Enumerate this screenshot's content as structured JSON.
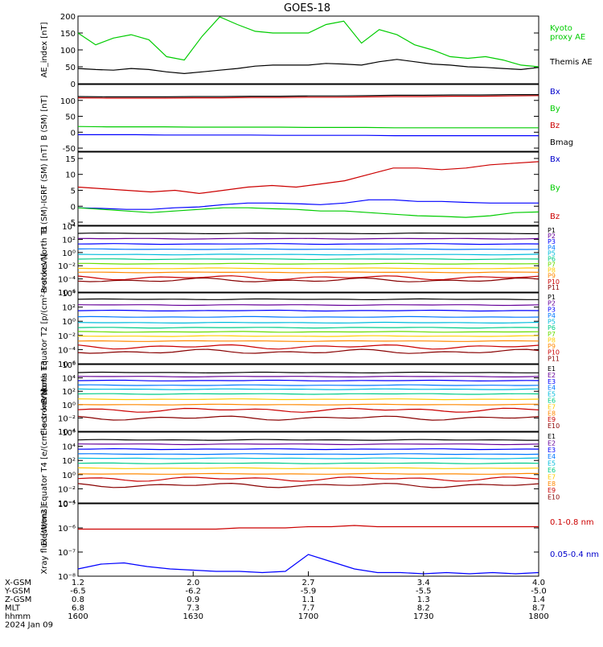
{
  "title": "GOES-18",
  "chart_data": [
    {
      "type": "line",
      "panel": "ae",
      "ylabel": "AE_index [nT]",
      "yticks": [
        "0",
        "50",
        "100",
        "150",
        "200"
      ],
      "ylim": [
        0,
        200
      ],
      "series": [
        {
          "name": "Kyoto proxy AE",
          "color": "#00cc00",
          "values": [
            150,
            115,
            135,
            145,
            130,
            80,
            70,
            140,
            205,
            175,
            155,
            150,
            150,
            150,
            175,
            185,
            120,
            160,
            145,
            115,
            100,
            80,
            75,
            80,
            70,
            55,
            50
          ]
        },
        {
          "name": "Themis AE",
          "color": "#000000",
          "values": [
            45,
            42,
            40,
            45,
            42,
            35,
            30,
            35,
            40,
            45,
            52,
            55,
            55,
            55,
            60,
            58,
            55,
            65,
            72,
            65,
            58,
            55,
            50,
            48,
            45,
            42,
            48
          ]
        }
      ],
      "legend": [
        {
          "text": "Kyoto",
          "color": "#00cc00"
        },
        {
          "text": "proxy AE",
          "color": "#00cc00"
        },
        {
          "text": "Themis AE",
          "color": "#000000"
        }
      ]
    },
    {
      "type": "line",
      "panel": "bsm",
      "ylabel": "B (SM) [nT]",
      "yticks": [
        "-50",
        "0",
        "50",
        "100"
      ],
      "ylim": [
        -60,
        150
      ],
      "series": [
        {
          "name": "Bx",
          "color": "#0000ff",
          "values": [
            -8,
            -8,
            -8,
            -9,
            -9,
            -9,
            -9,
            -10,
            -10,
            -10,
            -10,
            -11,
            -11,
            -11,
            -11,
            -11,
            -11
          ]
        },
        {
          "name": "By",
          "color": "#00cc00",
          "values": [
            18,
            17,
            17,
            17,
            16,
            16,
            16,
            16,
            15,
            15,
            15,
            14,
            14,
            14,
            14,
            14,
            14
          ]
        },
        {
          "name": "Bz",
          "color": "#cc0000",
          "values": [
            108,
            107,
            107,
            107,
            108,
            108,
            109,
            109,
            110,
            110,
            111,
            112,
            112,
            113,
            113,
            114,
            115
          ]
        },
        {
          "name": "Bmag",
          "color": "#000000",
          "values": [
            112,
            111,
            111,
            111,
            112,
            112,
            113,
            113,
            114,
            114,
            115,
            116,
            116,
            117,
            117,
            118,
            118
          ]
        }
      ],
      "legend": [
        {
          "text": "Bx",
          "color": "#0000cc"
        },
        {
          "text": "By",
          "color": "#00cc00"
        },
        {
          "text": "Bz",
          "color": "#cc0000"
        },
        {
          "text": "Bmag",
          "color": "#000000"
        }
      ]
    },
    {
      "type": "line",
      "panel": "bsm-igrf",
      "ylabel": "B (SM)-IGRF (SM) [nT]",
      "yticks": [
        "-5",
        "0",
        "5",
        "10",
        "15"
      ],
      "ylim": [
        -6,
        17
      ],
      "series": [
        {
          "name": "Bx",
          "color": "#0000ff",
          "values": [
            -0.5,
            -0.7,
            -1,
            -1,
            -0.5,
            -0.2,
            0.5,
            1,
            1,
            0.8,
            0.5,
            1,
            2,
            2,
            1.5,
            1.5,
            1.2,
            1,
            1,
            1
          ]
        },
        {
          "name": "By",
          "color": "#00cc00",
          "values": [
            -0.5,
            -1,
            -1.5,
            -2,
            -1.5,
            -1,
            -0.5,
            -0.5,
            -0.8,
            -1,
            -1.5,
            -1.5,
            -2,
            -2.5,
            -3,
            -3.2,
            -3.5,
            -3,
            -2,
            -1.8
          ]
        },
        {
          "name": "Bz",
          "color": "#cc0000",
          "values": [
            6,
            5.5,
            5,
            4.5,
            5,
            4,
            5,
            6,
            6.5,
            6,
            7,
            8,
            10,
            12,
            12,
            11.5,
            12,
            13,
            13.5,
            14
          ]
        }
      ],
      "legend": [
        {
          "text": "Bx",
          "color": "#0000cc"
        },
        {
          "text": "By",
          "color": "#00cc00"
        },
        {
          "text": "Bz",
          "color": "#cc0000"
        }
      ]
    },
    {
      "type": "line",
      "panel": "protons-t1",
      "ylabel": "Protons North T1",
      "yscale": "log",
      "yticks": [
        "10⁻⁶",
        "10⁻⁴",
        "10⁻²",
        "10⁰",
        "10²",
        "10⁴"
      ],
      "ylim": [
        -6,
        4
      ],
      "channels": [
        {
          "name": "P1",
          "color": "#000000",
          "log": 2.9
        },
        {
          "name": "P2",
          "color": "#660099",
          "log": 2.1
        },
        {
          "name": "P3",
          "color": "#0000ff",
          "log": 1.3
        },
        {
          "name": "P4",
          "color": "#0077ff",
          "log": 0.5
        },
        {
          "name": "P5",
          "color": "#00bbdd",
          "log": -0.3
        },
        {
          "name": "P6",
          "color": "#00cc88",
          "log": -1.0
        },
        {
          "name": "P7",
          "color": "#66dd00",
          "log": -1.7
        },
        {
          "name": "P8",
          "color": "#ffcc00",
          "log": -2.4
        },
        {
          "name": "P9",
          "color": "#ff8800",
          "log": -3.0
        },
        {
          "name": "P10",
          "color": "#cc0000",
          "log": -3.8
        },
        {
          "name": "P11",
          "color": "#880000",
          "log": -4.2
        }
      ]
    },
    {
      "type": "line",
      "panel": "protons-t2",
      "ylabel": "Protons Equator T2 [p/(cm²-s-sr-keV)]",
      "yscale": "log",
      "yticks": [
        "10⁻⁶",
        "10⁻⁴",
        "10⁻²",
        "10⁰",
        "10²",
        "10⁴"
      ],
      "ylim": [
        -6,
        4
      ],
      "channels": [
        {
          "name": "P1",
          "color": "#000000",
          "log": 3.1
        },
        {
          "name": "P2",
          "color": "#660099",
          "log": 2.3
        },
        {
          "name": "P3",
          "color": "#0000ff",
          "log": 1.5
        },
        {
          "name": "P4",
          "color": "#0077ff",
          "log": 0.6
        },
        {
          "name": "P5",
          "color": "#00bbdd",
          "log": -0.2
        },
        {
          "name": "P6",
          "color": "#00cc88",
          "log": -0.9
        },
        {
          "name": "P7",
          "color": "#66dd00",
          "log": -1.5
        },
        {
          "name": "P8",
          "color": "#ffcc00",
          "log": -2.1
        },
        {
          "name": "P9",
          "color": "#ff8800",
          "log": -2.8
        },
        {
          "name": "P10",
          "color": "#cc0000",
          "log": -3.6
        },
        {
          "name": "P11",
          "color": "#880000",
          "log": -4.3
        }
      ]
    },
    {
      "type": "line",
      "panel": "electrons-t3",
      "ylabel": "Electrons North T3",
      "yscale": "log",
      "yticks": [
        "10⁻⁴",
        "10⁻²",
        "10⁰",
        "10²",
        "10⁴",
        "10⁶"
      ],
      "ylim": [
        -4,
        6
      ],
      "channels": [
        {
          "name": "E1",
          "color": "#000000",
          "log": 4.8
        },
        {
          "name": "E2",
          "color": "#660099",
          "log": 4.2
        },
        {
          "name": "E3",
          "color": "#0000ff",
          "log": 3.6
        },
        {
          "name": "E4",
          "color": "#0077ff",
          "log": 2.9
        },
        {
          "name": "E5",
          "color": "#00bbdd",
          "log": 2.3
        },
        {
          "name": "E6",
          "color": "#00cc88",
          "log": 1.6
        },
        {
          "name": "E7",
          "color": "#ffcc00",
          "log": 0.8
        },
        {
          "name": "E8",
          "color": "#ff8800",
          "log": 0.0
        },
        {
          "name": "E9",
          "color": "#cc0000",
          "log": -0.8
        },
        {
          "name": "E10",
          "color": "#880000",
          "log": -2.0
        }
      ]
    },
    {
      "type": "line",
      "panel": "electrons-t4",
      "ylabel": "Electrons Equator T4 [e/(cm²-s-sr-keV)]",
      "yscale": "log",
      "yticks": [
        "10⁻⁴",
        "10⁻²",
        "10⁰",
        "10²",
        "10⁴",
        "10⁶"
      ],
      "ylim": [
        -4,
        6
      ],
      "channels": [
        {
          "name": "E1",
          "color": "#000000",
          "log": 4.9
        },
        {
          "name": "E2",
          "color": "#660099",
          "log": 4.3
        },
        {
          "name": "E3",
          "color": "#0000ff",
          "log": 3.6
        },
        {
          "name": "E4",
          "color": "#0077ff",
          "log": 2.9
        },
        {
          "name": "E5",
          "color": "#00bbdd",
          "log": 2.3
        },
        {
          "name": "E6",
          "color": "#00cc88",
          "log": 1.6
        },
        {
          "name": "E7",
          "color": "#ffcc00",
          "log": 0.9
        },
        {
          "name": "E8",
          "color": "#ff8800",
          "log": 0.1
        },
        {
          "name": "E9",
          "color": "#cc0000",
          "log": -0.6
        },
        {
          "name": "E10",
          "color": "#880000",
          "log": -1.5
        }
      ]
    },
    {
      "type": "line",
      "panel": "xray",
      "ylabel": "Xray flux [W/m2]",
      "yscale": "log",
      "yticks": [
        "10⁻⁸",
        "10⁻⁷",
        "10⁻⁶",
        "10⁻⁵"
      ],
      "ylim": [
        -8,
        -5
      ],
      "series": [
        {
          "name": "0.1-0.8 nm",
          "color": "#cc0000",
          "values": [
            -6.05,
            -6.05,
            -6.05,
            -6.05,
            -6.05,
            -6.05,
            -6.05,
            -6.0,
            -6.0,
            -6.0,
            -5.95,
            -5.95,
            -5.9,
            -5.95,
            -5.95,
            -5.95,
            -5.95,
            -5.95,
            -5.95,
            -5.95,
            -5.95
          ]
        },
        {
          "name": "0.05-0.4 nm",
          "color": "#0000ff",
          "values": [
            -7.7,
            -7.5,
            -7.45,
            -7.6,
            -7.7,
            -7.75,
            -7.8,
            -7.8,
            -7.85,
            -7.8,
            -7.1,
            -7.4,
            -7.7,
            -7.85,
            -7.85,
            -7.9,
            -7.85,
            -7.9,
            -7.85,
            -7.9,
            -7.85
          ]
        }
      ],
      "legend": [
        {
          "text": "0.1-0.8 nm",
          "color": "#cc0000"
        },
        {
          "text": "0.05-0.4 nm",
          "color": "#0000cc"
        }
      ]
    }
  ],
  "x_axis": {
    "row_labels": [
      "X-GSM",
      "Y-GSM",
      "Z-GSM",
      "MLT",
      "hhmm",
      "2024 Jan 09"
    ],
    "columns": [
      [
        "1.2",
        "-6.5",
        "0.8",
        "6.8",
        "1600"
      ],
      [
        "2.0",
        "-6.2",
        "0.9",
        "7.3",
        "1630"
      ],
      [
        "2.7",
        "-5.9",
        "1.1",
        "7.7",
        "1700"
      ],
      [
        "3.4",
        "-5.5",
        "1.3",
        "8.2",
        "1730"
      ],
      [
        "4.0",
        "-5.0",
        "1.4",
        "8.7",
        "1800"
      ]
    ]
  }
}
